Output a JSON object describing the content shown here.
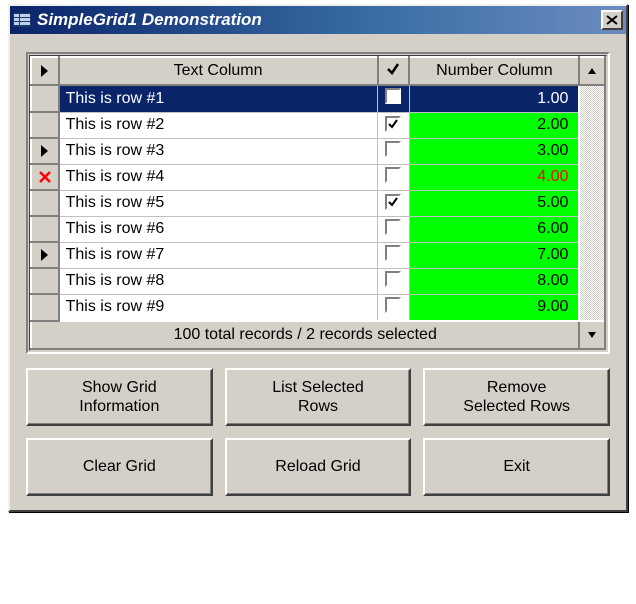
{
  "window": {
    "title": "SimpleGrid1 Demonstration"
  },
  "grid": {
    "columns": {
      "text": "Text Column",
      "checkbox_header_glyph": "✔",
      "number": "Number Column"
    },
    "rows": [
      {
        "marker": "none",
        "text": "This is row #1",
        "checked": false,
        "number": "1.00",
        "selected": true,
        "num_bg": "#00ff00",
        "num_fg": "#000000"
      },
      {
        "marker": "none",
        "text": "This is row #2",
        "checked": true,
        "number": "2.00",
        "selected": false,
        "num_bg": "#00ff00",
        "num_fg": "#000000"
      },
      {
        "marker": "pointer",
        "text": "This is row #3",
        "checked": false,
        "number": "3.00",
        "selected": false,
        "num_bg": "#00ff00",
        "num_fg": "#000000"
      },
      {
        "marker": "x",
        "text": "This is row #4",
        "checked": false,
        "number": "4.00",
        "selected": false,
        "num_bg": "#00ff00",
        "num_fg": "#ff0000"
      },
      {
        "marker": "none",
        "text": "This is row #5",
        "checked": true,
        "number": "5.00",
        "selected": false,
        "num_bg": "#00ff00",
        "num_fg": "#000000"
      },
      {
        "marker": "none",
        "text": "This is row #6",
        "checked": false,
        "number": "6.00",
        "selected": false,
        "num_bg": "#00ff00",
        "num_fg": "#000000"
      },
      {
        "marker": "pointer",
        "text": "This is row #7",
        "checked": false,
        "number": "7.00",
        "selected": false,
        "num_bg": "#00ff00",
        "num_fg": "#000000"
      },
      {
        "marker": "none",
        "text": "This is row #8",
        "checked": false,
        "number": "8.00",
        "selected": false,
        "num_bg": "#00ff00",
        "num_fg": "#000000"
      },
      {
        "marker": "none",
        "text": "This is row #9",
        "checked": false,
        "number": "9.00",
        "selected": false,
        "num_bg": "#00ff00",
        "num_fg": "#000000"
      }
    ],
    "status": "100 total records / 2 records selected",
    "colors": {
      "selected_row_bg": "#0a246a",
      "selected_row_fg": "#ffffff",
      "dialog_bg": "#d4d0c8"
    }
  },
  "buttons": {
    "show_info": "Show Grid\nInformation",
    "list_selected": "List Selected\nRows",
    "remove_selected": "Remove\nSelected Rows",
    "clear": "Clear Grid",
    "reload": "Reload Grid",
    "exit": "Exit"
  }
}
